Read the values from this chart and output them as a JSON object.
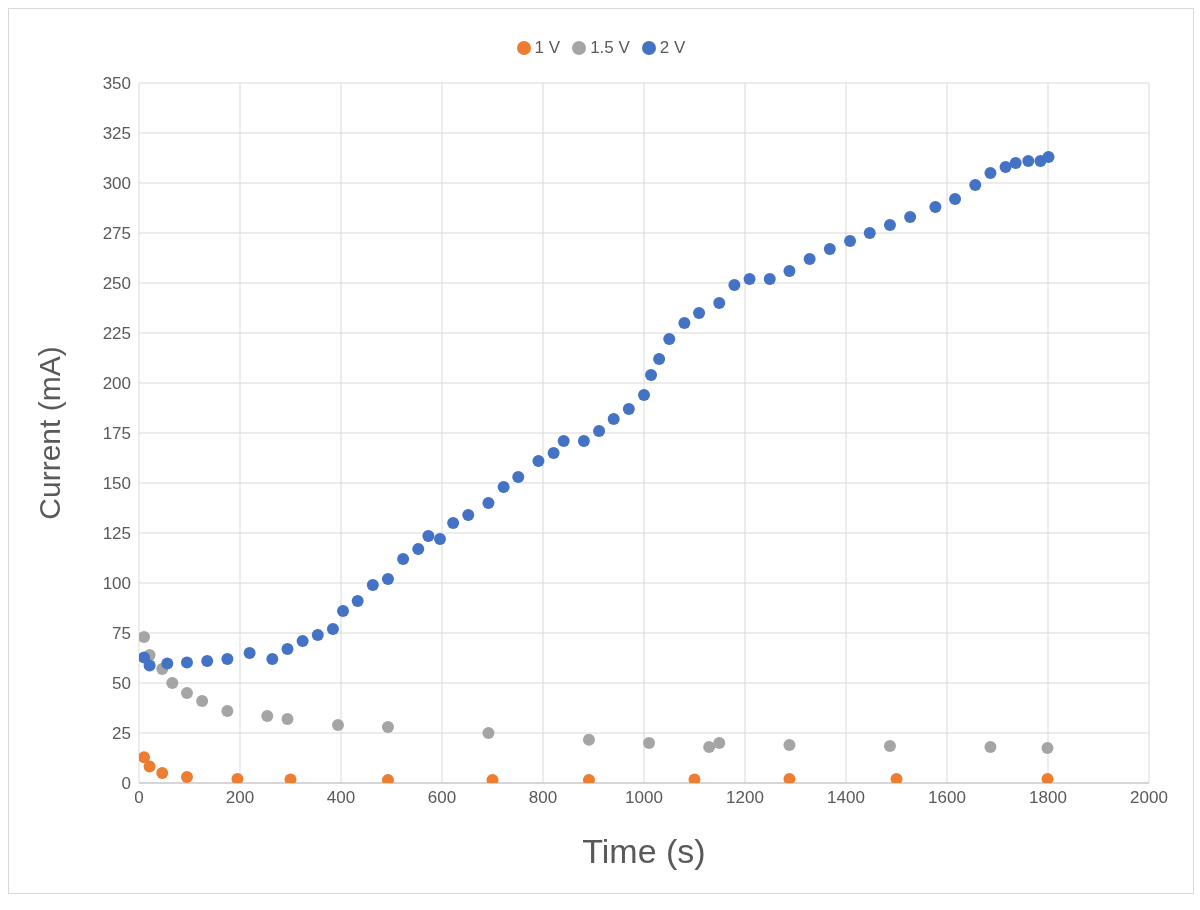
{
  "chart_data": {
    "type": "scatter",
    "xlabel": "Time (s)",
    "ylabel": "Current (mA)",
    "xlim": [
      0,
      2000
    ],
    "xticks": [
      0,
      200,
      400,
      600,
      800,
      1000,
      1200,
      1400,
      1600,
      1800,
      2000
    ],
    "ylim": [
      0,
      350
    ],
    "yticks": [
      0,
      25,
      50,
      75,
      100,
      125,
      150,
      175,
      200,
      225,
      250,
      275,
      300,
      325,
      350
    ],
    "grid": true,
    "legend": "top",
    "marker": "circle",
    "series": [
      {
        "name": "1 V",
        "color": "#ed7d31",
        "x": [
          10,
          21,
          46,
          95,
          195,
          300,
          493,
          700,
          891,
          1100,
          1288,
          1500,
          1799
        ],
        "values": [
          12.9,
          8.2,
          5,
          3,
          2,
          1.7,
          1.5,
          1.5,
          1.5,
          1.8,
          2,
          2,
          2
        ]
      },
      {
        "name": "1.5 V",
        "color": "#a5a5a5",
        "x": [
          10,
          21,
          46,
          66,
          95,
          125,
          175,
          254,
          294,
          394,
          493,
          692,
          891,
          1010,
          1129,
          1149,
          1288,
          1487,
          1686,
          1799
        ],
        "values": [
          73,
          64,
          57,
          50,
          45,
          41,
          36,
          33.5,
          32,
          29,
          28,
          25,
          21.6,
          20,
          18,
          20,
          19,
          18.5,
          18,
          17.5
        ]
      },
      {
        "name": "2 V",
        "color": "#4472c4",
        "x": [
          10,
          21,
          56,
          95,
          135,
          175,
          219,
          264,
          294,
          324,
          354,
          384,
          404,
          433,
          463,
          493,
          523,
          553,
          573,
          596,
          622,
          652,
          692,
          722,
          751,
          791,
          821,
          841,
          881,
          911,
          940,
          970,
          1000,
          1014,
          1030,
          1050,
          1080,
          1109,
          1149,
          1179,
          1209,
          1249,
          1288,
          1328,
          1368,
          1408,
          1447,
          1487,
          1527,
          1577,
          1616,
          1656,
          1686,
          1716,
          1736,
          1761,
          1785,
          1801
        ],
        "values": [
          62.8,
          58.7,
          59.7,
          60.2,
          61,
          62,
          65,
          62,
          67,
          71,
          74,
          77,
          86,
          91,
          99,
          102,
          112,
          117,
          123.5,
          122,
          130,
          134,
          140,
          148,
          153,
          161,
          165,
          171,
          171,
          176,
          182,
          187,
          194,
          204,
          212,
          222,
          230,
          235,
          240,
          249,
          252,
          252,
          256,
          262,
          267,
          271,
          275,
          279,
          283,
          288,
          292,
          299,
          305,
          308,
          310,
          311,
          311,
          313
        ]
      }
    ]
  }
}
